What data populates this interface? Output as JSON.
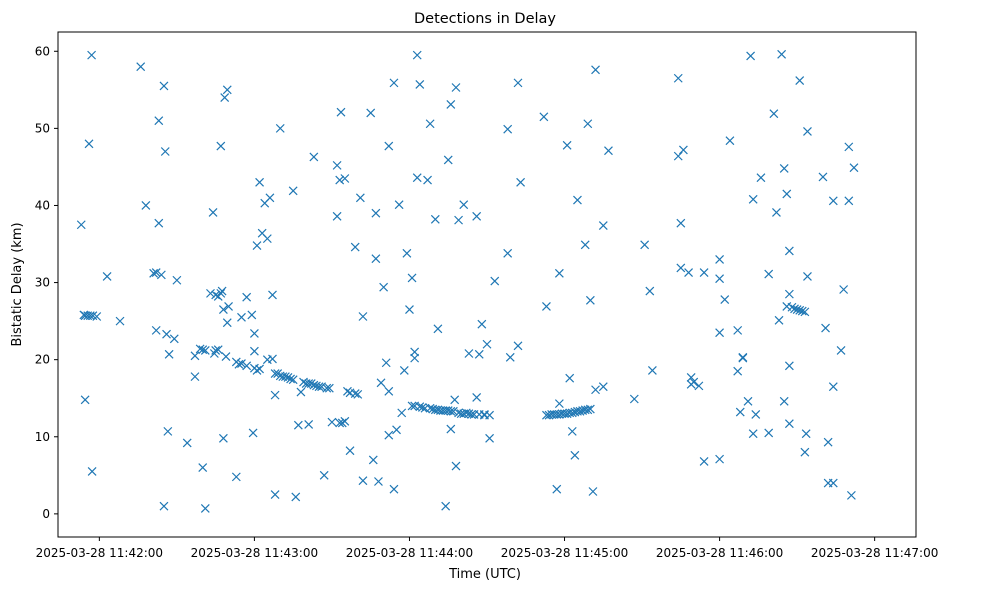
{
  "chart_data": {
    "type": "scatter",
    "title": "Detections in Delay",
    "xlabel": "Time (UTC)",
    "ylabel": "Bistatic Delay (km)",
    "marker": "x",
    "color": "#1f77b4",
    "grid": false,
    "x_unit": "seconds after 2025-03-28 11:42:00",
    "xlim": [
      -16,
      316
    ],
    "ylim": [
      -3,
      62.5
    ],
    "x_ticks": [
      0,
      60,
      120,
      180,
      240,
      300
    ],
    "x_tick_labels": [
      "2025-03-28 11:42:00",
      "2025-03-28 11:43:00",
      "2025-03-28 11:44:00",
      "2025-03-28 11:45:00",
      "2025-03-28 11:46:00",
      "2025-03-28 11:47:00"
    ],
    "y_ticks": [
      0,
      10,
      20,
      30,
      40,
      50,
      60
    ],
    "y_tick_labels": [
      "0",
      "10",
      "20",
      "30",
      "40",
      "50",
      "60"
    ],
    "series": [
      {
        "name": "Detections",
        "points": [
          [
            -6,
            25.8
          ],
          [
            -5.5,
            25.7
          ],
          [
            -4.5,
            25.7
          ],
          [
            -3.5,
            25.7
          ],
          [
            -2.5,
            25.7
          ],
          [
            -1,
            25.6
          ],
          [
            -7,
            37.5
          ],
          [
            -5.5,
            14.8
          ],
          [
            -4,
            48
          ],
          [
            -3,
            59.5
          ],
          [
            -2.8,
            5.5
          ],
          [
            3,
            30.8
          ],
          [
            8,
            25
          ],
          [
            16,
            58
          ],
          [
            18,
            40
          ],
          [
            21,
            31.2
          ],
          [
            22,
            31.3
          ],
          [
            22,
            23.8
          ],
          [
            23,
            37.7
          ],
          [
            23,
            51
          ],
          [
            24,
            31
          ],
          [
            25,
            55.5
          ],
          [
            25,
            1
          ],
          [
            25.5,
            47
          ],
          [
            26,
            23.3
          ],
          [
            26.5,
            10.7
          ],
          [
            27,
            20.7
          ],
          [
            29,
            22.7
          ],
          [
            30,
            30.3
          ],
          [
            34,
            9.2
          ],
          [
            37,
            17.8
          ],
          [
            37,
            20.5
          ],
          [
            39,
            21.4
          ],
          [
            40,
            21.3
          ],
          [
            41,
            21.2
          ],
          [
            40,
            6
          ],
          [
            41,
            0.7
          ],
          [
            44,
            39.1
          ],
          [
            43,
            28.6
          ],
          [
            45,
            28.4
          ],
          [
            46,
            28.2
          ],
          [
            47,
            28.6
          ],
          [
            47.5,
            28.9
          ],
          [
            44.5,
            20.8
          ],
          [
            45,
            21.2
          ],
          [
            46,
            21.3
          ],
          [
            47,
            47.7
          ],
          [
            48,
            26.5
          ],
          [
            48.5,
            54
          ],
          [
            48,
            9.8
          ],
          [
            49,
            20.4
          ],
          [
            49.5,
            55
          ],
          [
            49.5,
            24.8
          ],
          [
            50,
            26.9
          ],
          [
            53,
            19.7
          ],
          [
            54,
            19.4
          ],
          [
            55,
            19.5
          ],
          [
            55,
            25.5
          ],
          [
            53,
            4.8
          ],
          [
            57,
            28.1
          ],
          [
            57,
            19.2
          ],
          [
            59,
            25.8
          ],
          [
            60,
            23.4
          ],
          [
            59.5,
            10.5
          ],
          [
            60,
            21.1
          ],
          [
            60,
            18.9
          ],
          [
            61,
            18.6
          ],
          [
            61,
            34.8
          ],
          [
            62,
            43
          ],
          [
            62,
            18.8
          ],
          [
            63,
            36.4
          ],
          [
            64,
            40.3
          ],
          [
            65,
            20
          ],
          [
            65,
            35.7
          ],
          [
            66,
            41
          ],
          [
            67,
            28.4
          ],
          [
            67,
            20.1
          ],
          [
            68,
            18.2
          ],
          [
            68,
            15.4
          ],
          [
            68,
            2.5
          ],
          [
            69,
            18.2
          ],
          [
            70,
            50
          ],
          [
            70,
            17.9
          ],
          [
            71,
            17.8
          ],
          [
            72,
            17.8
          ],
          [
            73,
            17.7
          ],
          [
            74,
            17.5
          ],
          [
            75,
            17.4
          ],
          [
            75,
            41.9
          ],
          [
            76,
            2.2
          ],
          [
            77,
            11.5
          ],
          [
            78,
            15.8
          ],
          [
            79,
            17.1
          ],
          [
            80,
            16.9
          ],
          [
            81,
            11.6
          ],
          [
            81,
            16.9
          ],
          [
            82,
            16.9
          ],
          [
            83,
            16.7
          ],
          [
            83,
            46.3
          ],
          [
            84,
            16.6
          ],
          [
            85,
            16.5
          ],
          [
            86,
            16.5
          ],
          [
            87,
            5
          ],
          [
            88,
            16.3
          ],
          [
            89,
            16.3
          ],
          [
            90,
            11.9
          ],
          [
            92,
            45.2
          ],
          [
            92,
            38.6
          ],
          [
            93,
            43.3
          ],
          [
            93,
            11.8
          ],
          [
            93.5,
            52.1
          ],
          [
            94,
            11.8
          ],
          [
            95,
            43.5
          ],
          [
            95,
            12
          ],
          [
            96,
            15.9
          ],
          [
            97,
            15.7
          ],
          [
            97,
            8.2
          ],
          [
            99,
            15.6
          ],
          [
            100,
            15.5
          ],
          [
            99,
            34.6
          ],
          [
            101,
            41
          ],
          [
            102,
            4.3
          ],
          [
            102,
            25.6
          ],
          [
            105,
            52
          ],
          [
            106,
            7
          ],
          [
            107,
            39
          ],
          [
            107,
            33.1
          ],
          [
            108,
            4.2
          ],
          [
            109,
            17
          ],
          [
            110,
            29.4
          ],
          [
            111,
            19.6
          ],
          [
            112,
            15.9
          ],
          [
            112,
            10.2
          ],
          [
            112,
            47.7
          ],
          [
            114,
            3.2
          ],
          [
            114,
            55.9
          ],
          [
            115,
            10.9
          ],
          [
            116,
            40.1
          ],
          [
            117,
            13.1
          ],
          [
            118,
            18.6
          ],
          [
            119,
            33.8
          ],
          [
            120,
            26.5
          ],
          [
            121,
            30.6
          ],
          [
            121,
            14
          ],
          [
            122,
            14
          ],
          [
            122,
            20.2
          ],
          [
            122,
            21
          ],
          [
            123,
            43.6
          ],
          [
            123,
            59.5
          ],
          [
            124,
            13.9
          ],
          [
            124,
            55.7
          ],
          [
            125,
            13.8
          ],
          [
            126,
            13.7
          ],
          [
            127,
            43.3
          ],
          [
            128,
            50.6
          ],
          [
            128,
            13.7
          ],
          [
            129,
            13.6
          ],
          [
            130,
            38.2
          ],
          [
            130,
            13.5
          ],
          [
            131,
            24
          ],
          [
            131,
            13.5
          ],
          [
            132,
            13.4
          ],
          [
            133,
            13.4
          ],
          [
            134,
            1
          ],
          [
            134,
            13.4
          ],
          [
            135,
            13.4
          ],
          [
            135,
            45.9
          ],
          [
            136,
            11
          ],
          [
            136,
            53.1
          ],
          [
            136,
            13.3
          ],
          [
            137,
            13.3
          ],
          [
            137.5,
            14.8
          ],
          [
            138,
            6.2
          ],
          [
            138,
            55.3
          ],
          [
            139,
            13.1
          ],
          [
            139,
            38.1
          ],
          [
            140,
            13
          ],
          [
            141,
            13
          ],
          [
            141,
            40.1
          ],
          [
            142,
            13.1
          ],
          [
            143,
            13
          ],
          [
            143,
            20.8
          ],
          [
            144,
            12.9
          ],
          [
            145,
            12.9
          ],
          [
            146,
            38.6
          ],
          [
            146,
            15.1
          ],
          [
            147,
            12.9
          ],
          [
            147,
            20.7
          ],
          [
            148,
            24.6
          ],
          [
            149,
            12.9
          ],
          [
            149,
            12.8
          ],
          [
            150,
            22
          ],
          [
            151,
            12.8
          ],
          [
            151,
            9.8
          ],
          [
            153,
            30.2
          ],
          [
            158,
            49.9
          ],
          [
            158,
            33.8
          ],
          [
            159,
            20.3
          ],
          [
            162,
            55.9
          ],
          [
            162,
            21.8
          ],
          [
            163,
            43
          ],
          [
            172,
            51.5
          ],
          [
            173,
            26.9
          ],
          [
            173,
            12.8
          ],
          [
            174,
            12.8
          ],
          [
            175,
            12.9
          ],
          [
            176,
            12.9
          ],
          [
            177,
            3.2
          ],
          [
            177,
            12.9
          ],
          [
            178,
            12.9
          ],
          [
            178,
            14.3
          ],
          [
            178,
            31.2
          ],
          [
            179,
            13
          ],
          [
            180,
            13
          ],
          [
            181,
            47.8
          ],
          [
            181,
            13
          ],
          [
            182,
            17.6
          ],
          [
            182,
            13.1
          ],
          [
            183,
            13.1
          ],
          [
            183,
            10.7
          ],
          [
            184,
            13.2
          ],
          [
            184,
            7.6
          ],
          [
            185,
            40.7
          ],
          [
            185,
            13.3
          ],
          [
            186,
            13.3
          ],
          [
            187,
            13.4
          ],
          [
            188,
            34.9
          ],
          [
            188,
            13.5
          ],
          [
            189,
            50.6
          ],
          [
            189,
            13.5
          ],
          [
            190,
            13.6
          ],
          [
            190,
            27.7
          ],
          [
            191,
            2.9
          ],
          [
            192,
            57.6
          ],
          [
            192,
            16.1
          ],
          [
            195,
            16.5
          ],
          [
            195,
            37.4
          ],
          [
            197,
            47.1
          ],
          [
            207,
            14.9
          ],
          [
            211,
            34.9
          ],
          [
            213,
            28.9
          ],
          [
            214,
            18.6
          ],
          [
            224,
            56.5
          ],
          [
            224,
            46.4
          ],
          [
            225,
            31.9
          ],
          [
            225,
            37.7
          ],
          [
            226,
            47.2
          ],
          [
            228,
            31.3
          ],
          [
            229,
            17.7
          ],
          [
            229,
            16.8
          ],
          [
            230,
            17.1
          ],
          [
            232,
            16.6
          ],
          [
            234,
            6.8
          ],
          [
            234,
            31.3
          ],
          [
            240,
            33
          ],
          [
            240,
            30.5
          ],
          [
            240,
            23.5
          ],
          [
            240,
            7.1
          ],
          [
            242,
            27.8
          ],
          [
            244,
            48.4
          ],
          [
            247,
            18.5
          ],
          [
            247,
            23.8
          ],
          [
            248,
            13.2
          ],
          [
            249,
            20.2
          ],
          [
            249,
            20.3
          ],
          [
            251,
            14.6
          ],
          [
            252,
            59.4
          ],
          [
            253,
            10.4
          ],
          [
            253,
            40.8
          ],
          [
            254,
            12.9
          ],
          [
            256,
            43.6
          ],
          [
            259,
            10.5
          ],
          [
            259,
            31.1
          ],
          [
            261,
            51.9
          ],
          [
            262,
            39.1
          ],
          [
            263,
            25.1
          ],
          [
            264,
            59.6
          ],
          [
            265,
            44.8
          ],
          [
            265,
            14.6
          ],
          [
            266,
            41.5
          ],
          [
            266,
            26.9
          ],
          [
            267,
            34.1
          ],
          [
            267,
            28.5
          ],
          [
            267,
            11.7
          ],
          [
            267,
            19.2
          ],
          [
            268,
            26.8
          ],
          [
            269,
            26.6
          ],
          [
            270,
            26.5
          ],
          [
            271,
            26.4
          ],
          [
            271,
            56.2
          ],
          [
            272,
            26.3
          ],
          [
            273,
            26.2
          ],
          [
            273,
            8
          ],
          [
            273.5,
            10.4
          ],
          [
            274,
            49.6
          ],
          [
            274,
            30.8
          ],
          [
            280,
            43.7
          ],
          [
            281,
            24.1
          ],
          [
            282,
            9.3
          ],
          [
            282,
            4
          ],
          [
            284,
            4
          ],
          [
            284,
            16.5
          ],
          [
            284,
            40.6
          ],
          [
            287,
            21.2
          ],
          [
            288,
            29.1
          ],
          [
            290,
            40.6
          ],
          [
            290,
            47.6
          ],
          [
            291,
            2.4
          ],
          [
            292,
            44.9
          ]
        ]
      }
    ]
  }
}
